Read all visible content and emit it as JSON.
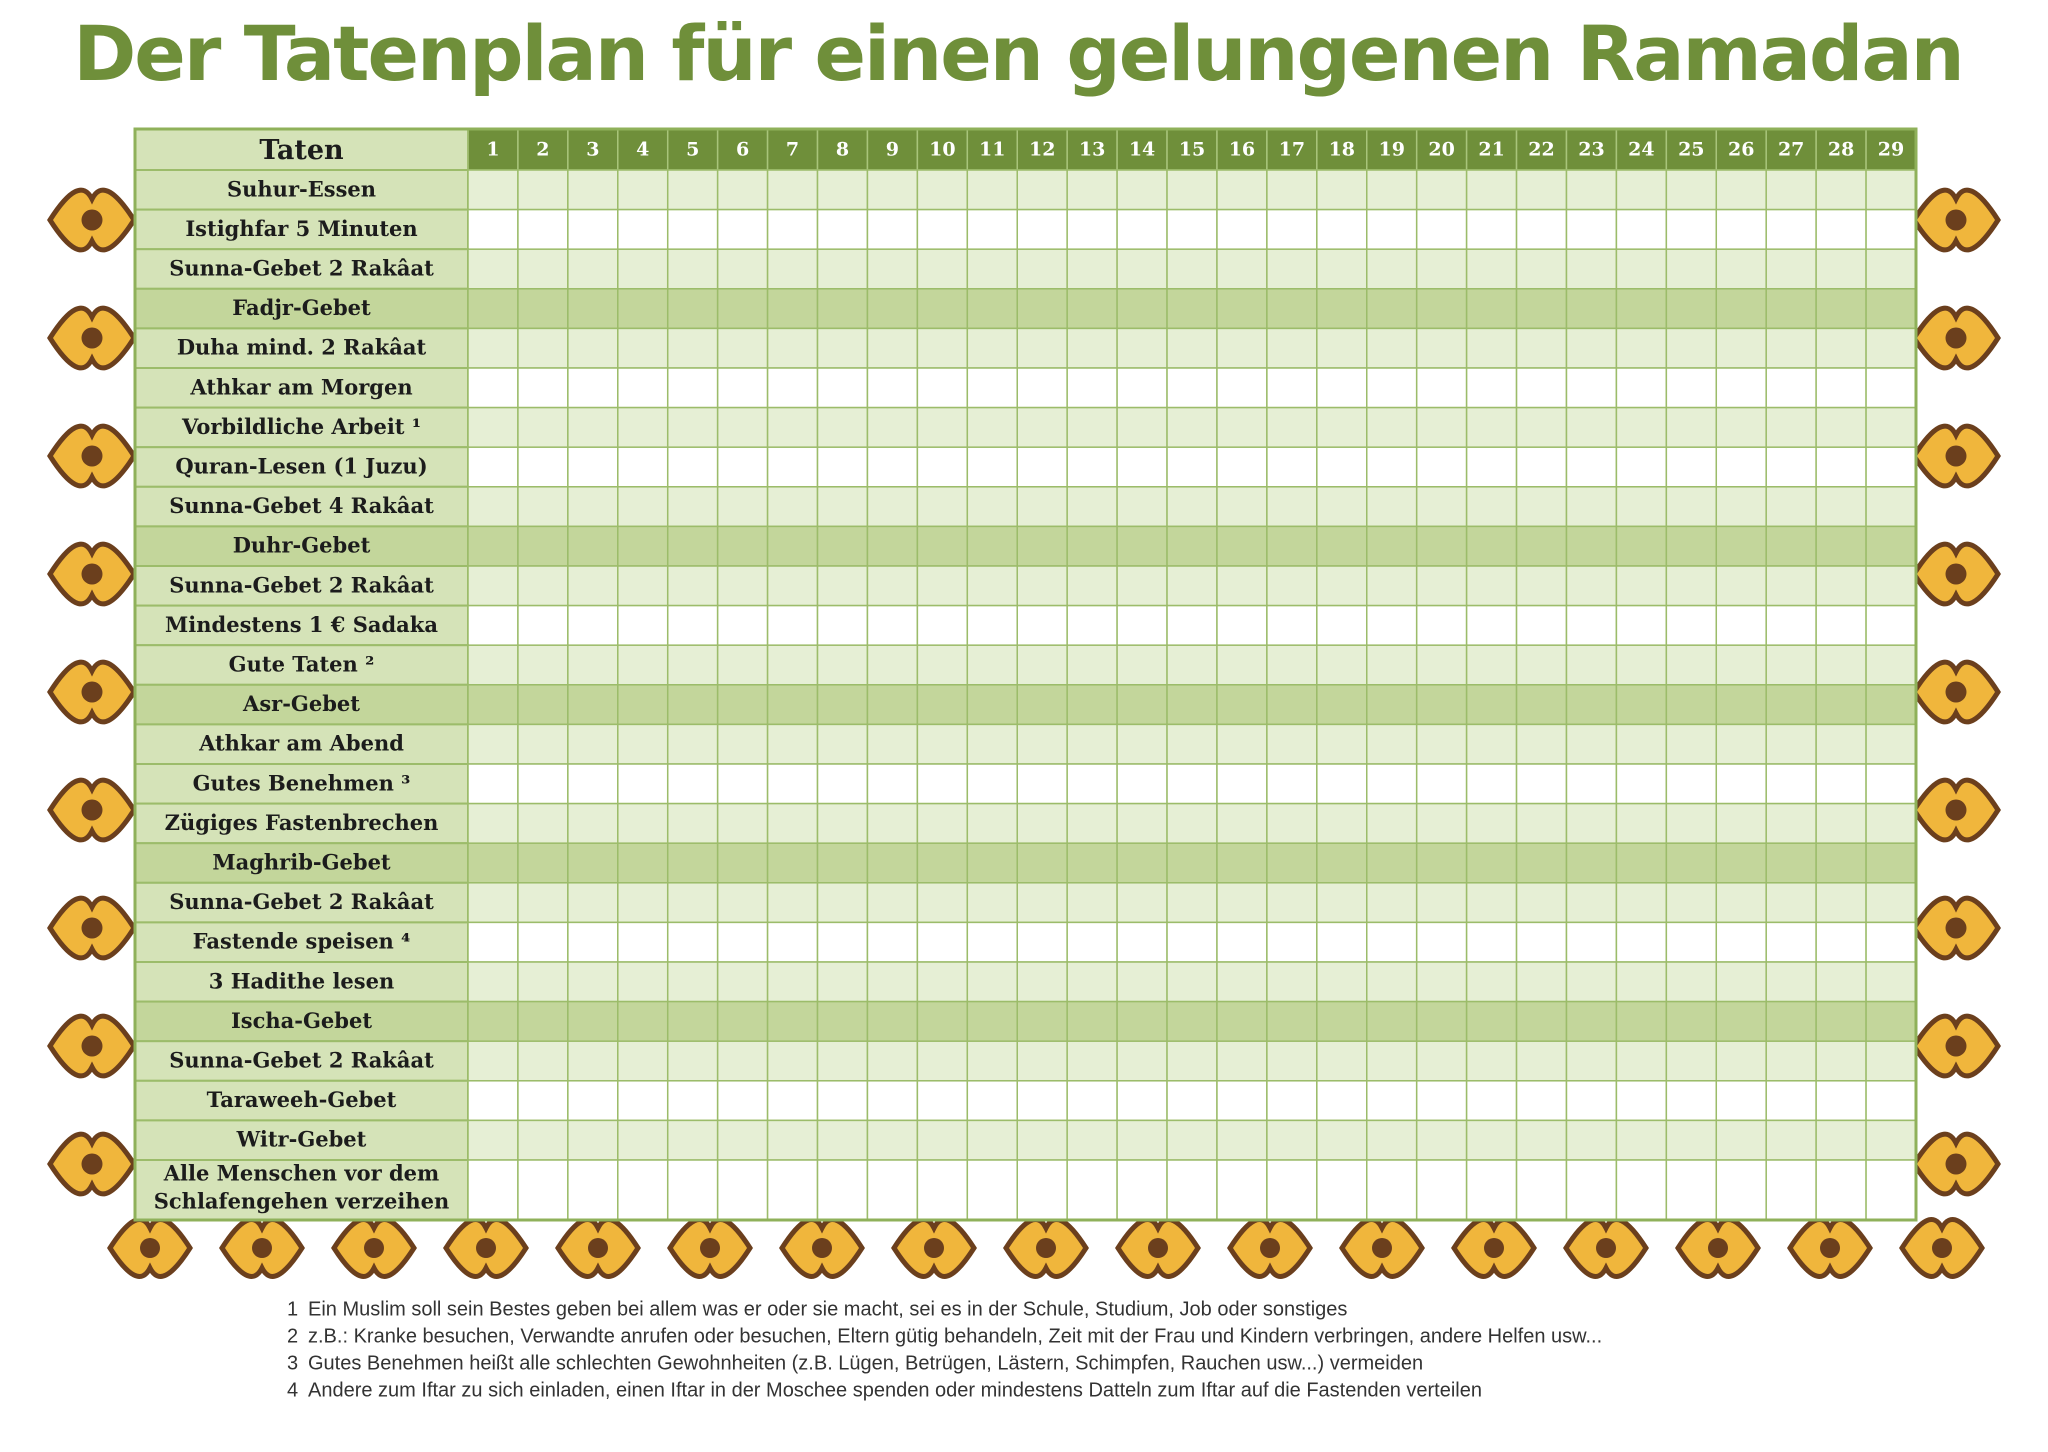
{
  "title": "Der Tatenplan für einen gelungenen Ramadan",
  "table": {
    "header": "Taten",
    "days": [
      1,
      2,
      3,
      4,
      5,
      6,
      7,
      8,
      9,
      10,
      11,
      12,
      13,
      14,
      15,
      16,
      17,
      18,
      19,
      20,
      21,
      22,
      23,
      24,
      25,
      26,
      27,
      28,
      29
    ],
    "rows": [
      {
        "label": "Suhur-Essen",
        "shade": "light"
      },
      {
        "label": "Istighfar 5 Minuten",
        "shade": "white"
      },
      {
        "label": "Sunna-Gebet 2 Rakâat",
        "shade": "light"
      },
      {
        "label": "Fadjr-Gebet",
        "shade": "dark"
      },
      {
        "label": "Duha mind. 2  Rakâat",
        "shade": "light"
      },
      {
        "label": "Athkar am Morgen",
        "shade": "white"
      },
      {
        "label": "Vorbildliche Arbeit ¹",
        "shade": "light"
      },
      {
        "label": "Quran-Lesen (1 Juzu)",
        "shade": "white"
      },
      {
        "label": "Sunna-Gebet 4 Rakâat",
        "shade": "light"
      },
      {
        "label": "Duhr-Gebet",
        "shade": "dark"
      },
      {
        "label": "Sunna-Gebet 2 Rakâat",
        "shade": "light"
      },
      {
        "label": "Mindestens 1 €  Sadaka",
        "shade": "white"
      },
      {
        "label": "Gute Taten ²",
        "shade": "light"
      },
      {
        "label": "Asr-Gebet",
        "shade": "dark"
      },
      {
        "label": "Athkar am Abend",
        "shade": "light"
      },
      {
        "label": "Gutes Benehmen ³",
        "shade": "white"
      },
      {
        "label": "Zügiges Fastenbrechen",
        "shade": "light"
      },
      {
        "label": "Maghrib-Gebet",
        "shade": "dark"
      },
      {
        "label": "Sunna-Gebet 2 Rakâat",
        "shade": "light"
      },
      {
        "label": "Fastende speisen ⁴",
        "shade": "white"
      },
      {
        "label": "3 Hadithe lesen",
        "shade": "light"
      },
      {
        "label": "Ischa-Gebet",
        "shade": "dark"
      },
      {
        "label": "Sunna-Gebet 2 Rakâat",
        "shade": "light"
      },
      {
        "label": "Taraweeh-Gebet",
        "shade": "white"
      },
      {
        "label": "Witr-Gebet",
        "shade": "light"
      },
      {
        "label": [
          "Alle Menschen vor dem",
          "Schlafengehen verzeihen"
        ],
        "shade": "white"
      }
    ]
  },
  "footnotes": [
    {
      "number": 1,
      "text": "Ein Muslim  soll  sein Bestes geben bei allem was er oder sie macht, sei es in der Schule, Studium, Job oder sonstiges"
    },
    {
      "number": 2,
      "text": "z.B.: Kranke besuchen, Verwandte anrufen oder besuchen, Eltern gütig behandeln, Zeit mit der Frau und Kindern verbringen, andere Helfen usw..."
    },
    {
      "number": 3,
      "text": "Gutes Benehmen heißt alle schlechten Gewohnheiten (z.B. Lügen, Betrügen, Lästern, Schimpfen, Rauchen usw...) vermeiden"
    },
    {
      "number": 4,
      "text": "Andere zum Iftar zu sich einladen, einen Iftar in der Moschee spenden oder mindestens Datteln  zum Iftar auf die Fastenden verteilen"
    }
  ]
}
